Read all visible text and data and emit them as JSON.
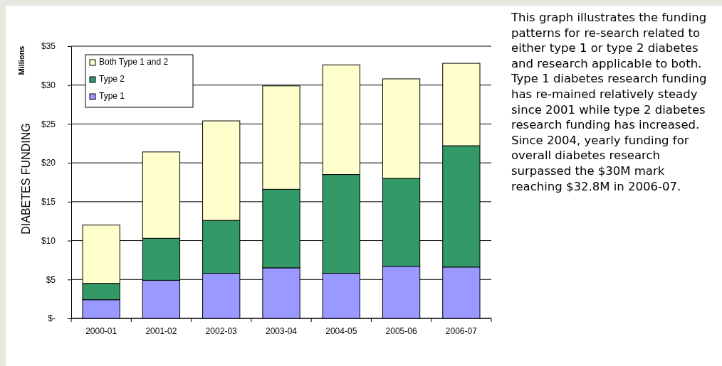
{
  "chart_data": {
    "type": "bar",
    "stacked": true,
    "ylabel": "DIABETES FUNDING",
    "categories": [
      "2000-01",
      "2001-02",
      "2002-03",
      "2003-04",
      "2004-05",
      "2005-06",
      "2006-07"
    ],
    "series": [
      {
        "name": "Type 1",
        "color": "#9999ff",
        "values": [
          2.4,
          4.9,
          5.8,
          6.5,
          5.8,
          6.7,
          6.6
        ]
      },
      {
        "name": "Type 2",
        "color": "#339966",
        "values": [
          2.1,
          5.4,
          6.8,
          10.1,
          12.7,
          11.3,
          15.6
        ]
      },
      {
        "name": "Both Type 1 and 2",
        "color": "#ffffcc",
        "values": [
          7.5,
          11.1,
          12.8,
          13.3,
          14.1,
          12.8,
          10.6
        ]
      }
    ],
    "ylim": [
      0,
      35
    ],
    "yticks": [
      {
        "value": 0,
        "label": "$-"
      },
      {
        "value": 5,
        "label": "$5"
      },
      {
        "value": 10,
        "label": "$10"
      },
      {
        "value": 15,
        "label": "$15"
      },
      {
        "value": 20,
        "label": "$20"
      },
      {
        "value": 25,
        "label": "$25"
      },
      {
        "value": 30,
        "label": "$30"
      },
      {
        "value": 35,
        "label": "$35"
      }
    ],
    "grid": "y",
    "legend": "top left",
    "annotations": [
      "Millions",
      "This graph illustrates the funding patterns for re-search related to either type 1 or type 2 diabetes and research applicable to both.  Type 1 diabetes research funding has re-mained relatively steady since 2001 while type 2 diabetes research funding has increased.  Since 2004, yearly funding for overall diabetes research surpassed the $30M mark reaching $32.8M in 2006-07."
    ]
  }
}
